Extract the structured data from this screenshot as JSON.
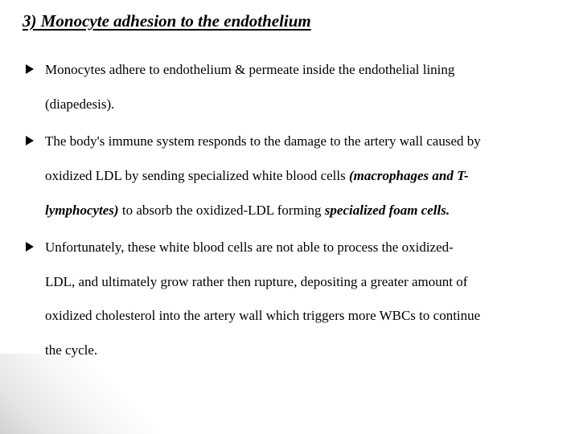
{
  "title": "3) Monocyte adhesion to  the endothelium",
  "bullets": [
    {
      "lines": [
        {
          "segments": [
            {
              "text": "Monocytes adhere to endothelium & permeate inside the endothelial lining"
            }
          ]
        },
        {
          "segments": [
            {
              "text": "(diapedesis)."
            }
          ]
        }
      ],
      "gap": "normal"
    },
    {
      "lines": [
        {
          "segments": [
            {
              "text": "The  body's immune system responds to the damage to the  artery wall caused by"
            }
          ]
        },
        {
          "segments": [
            {
              "text": "oxidized LDL by sending  specialized white blood cells "
            },
            {
              "text": "(macrophages and T-",
              "style": "bi"
            }
          ]
        },
        {
          "segments": [
            {
              "text": "lymphocytes)",
              "style": "bi"
            },
            {
              "text": " to absorb the oxidized-LDL forming  "
            },
            {
              "text": "specialized foam cells.",
              "style": "bi"
            }
          ]
        }
      ],
      "gap": "large"
    },
    {
      "lines": [
        {
          "segments": [
            {
              "text": "Unfortunately, these white  blood cells are not able to process the oxidized-"
            }
          ]
        },
        {
          "segments": [
            {
              "text": "LDL,  and ultimately grow rather then rupture, depositing a greater  amount of"
            }
          ]
        },
        {
          "segments": [
            {
              "text": "oxidized cholesterol into the artery wall which triggers more WBCs to continue"
            }
          ]
        },
        {
          "segments": [
            {
              "text": "the cycle."
            }
          ]
        }
      ],
      "gap": "normal"
    }
  ],
  "colors": {
    "text": "#000000",
    "background": "#ffffff"
  },
  "typography": {
    "title_fontsize": 21,
    "body_fontsize": 17,
    "font_family": "Times New Roman"
  }
}
